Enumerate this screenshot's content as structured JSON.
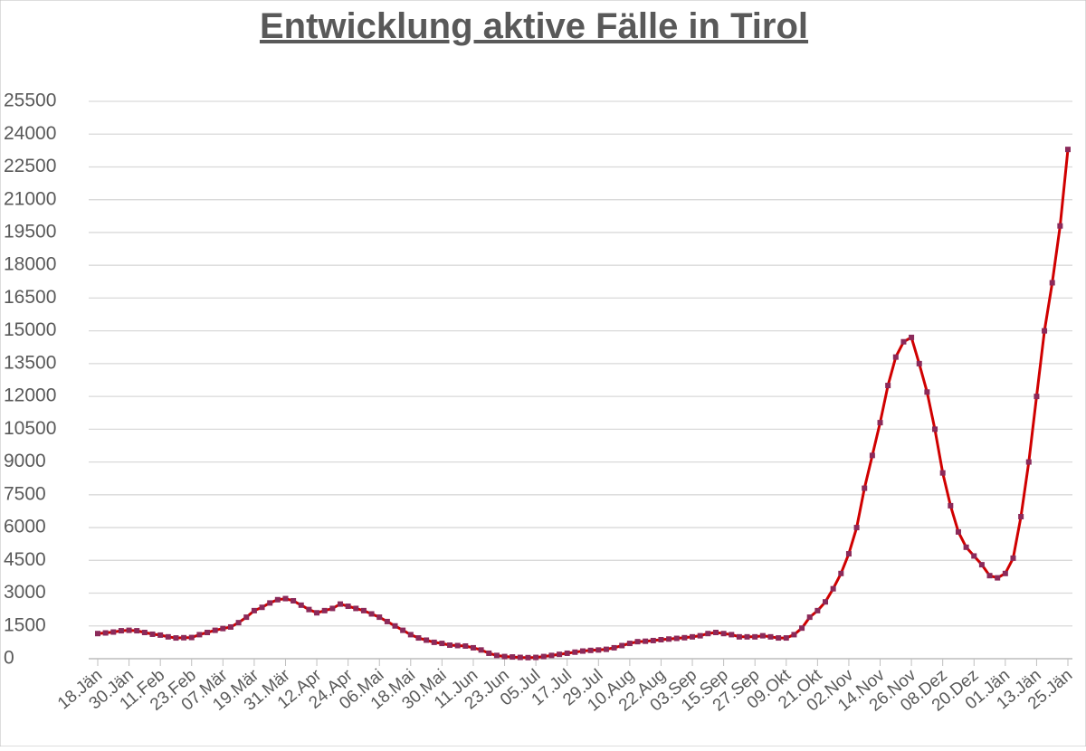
{
  "chart_data": {
    "type": "line",
    "title": "Entwicklung aktive Fälle in Tirol",
    "categories": [
      "18.Jän",
      null,
      null,
      null,
      "30.Jän",
      null,
      null,
      null,
      "11.Feb",
      null,
      null,
      null,
      "23.Feb",
      null,
      null,
      null,
      "07.Mär",
      null,
      null,
      null,
      "19.Mär",
      null,
      null,
      null,
      "31.Mär",
      null,
      null,
      null,
      "12.Apr",
      null,
      null,
      null,
      "24.Apr",
      null,
      null,
      null,
      "06.Mai",
      null,
      null,
      null,
      "18.Mai",
      null,
      null,
      null,
      "30.Mai",
      null,
      null,
      null,
      "11.Jun",
      null,
      null,
      null,
      "23.Jun",
      null,
      null,
      null,
      "05.Jul",
      null,
      null,
      null,
      "17.Jul",
      null,
      null,
      null,
      "29.Jul",
      null,
      null,
      null,
      "10.Aug",
      null,
      null,
      null,
      "22.Aug",
      null,
      null,
      null,
      "03.Sep",
      null,
      null,
      null,
      "15.Sep",
      null,
      null,
      null,
      "27.Sep",
      null,
      null,
      null,
      "09.Okt",
      null,
      null,
      null,
      "21.Okt",
      null,
      null,
      null,
      "02.Nov",
      null,
      null,
      null,
      "14.Nov",
      null,
      null,
      null,
      "26.Nov",
      null,
      null,
      null,
      "08.Dez",
      null,
      null,
      null,
      "20.Dez",
      null,
      null,
      null,
      "01.Jän",
      null,
      null,
      null,
      "13.Jän",
      null,
      null,
      null,
      "25.Jän"
    ],
    "values": [
      1150,
      1180,
      1220,
      1280,
      1300,
      1280,
      1200,
      1120,
      1080,
      1000,
      950,
      960,
      970,
      1100,
      1200,
      1300,
      1380,
      1450,
      1650,
      1900,
      2200,
      2350,
      2550,
      2700,
      2750,
      2650,
      2450,
      2250,
      2100,
      2200,
      2300,
      2500,
      2400,
      2300,
      2200,
      2050,
      1900,
      1700,
      1500,
      1300,
      1100,
      950,
      850,
      750,
      700,
      620,
      600,
      580,
      500,
      400,
      250,
      150,
      100,
      80,
      60,
      50,
      60,
      100,
      150,
      200,
      250,
      300,
      350,
      380,
      400,
      430,
      500,
      600,
      700,
      780,
      800,
      830,
      870,
      900,
      930,
      960,
      1000,
      1050,
      1150,
      1200,
      1150,
      1100,
      1000,
      1000,
      1000,
      1050,
      1000,
      950,
      950,
      1100,
      1400,
      1900,
      2200,
      2600,
      3200,
      3900,
      4800,
      6000,
      7800,
      9300,
      10800,
      12500,
      13800,
      14500,
      14700,
      13500,
      12200,
      10500,
      8500,
      7000,
      5800,
      5100,
      4700,
      4300,
      3800,
      3700,
      3900,
      4600,
      6500,
      9000,
      12000,
      15000,
      17200,
      19800,
      23300
    ],
    "color": "#d00000",
    "marker_color": "#8b2a5a",
    "ylim": [
      0,
      25500
    ],
    "yticks": [
      0,
      1500,
      3000,
      4500,
      6000,
      7500,
      9000,
      10500,
      12000,
      13500,
      15000,
      16500,
      18000,
      19500,
      21000,
      22500,
      24000,
      25500
    ],
    "grid": true
  }
}
